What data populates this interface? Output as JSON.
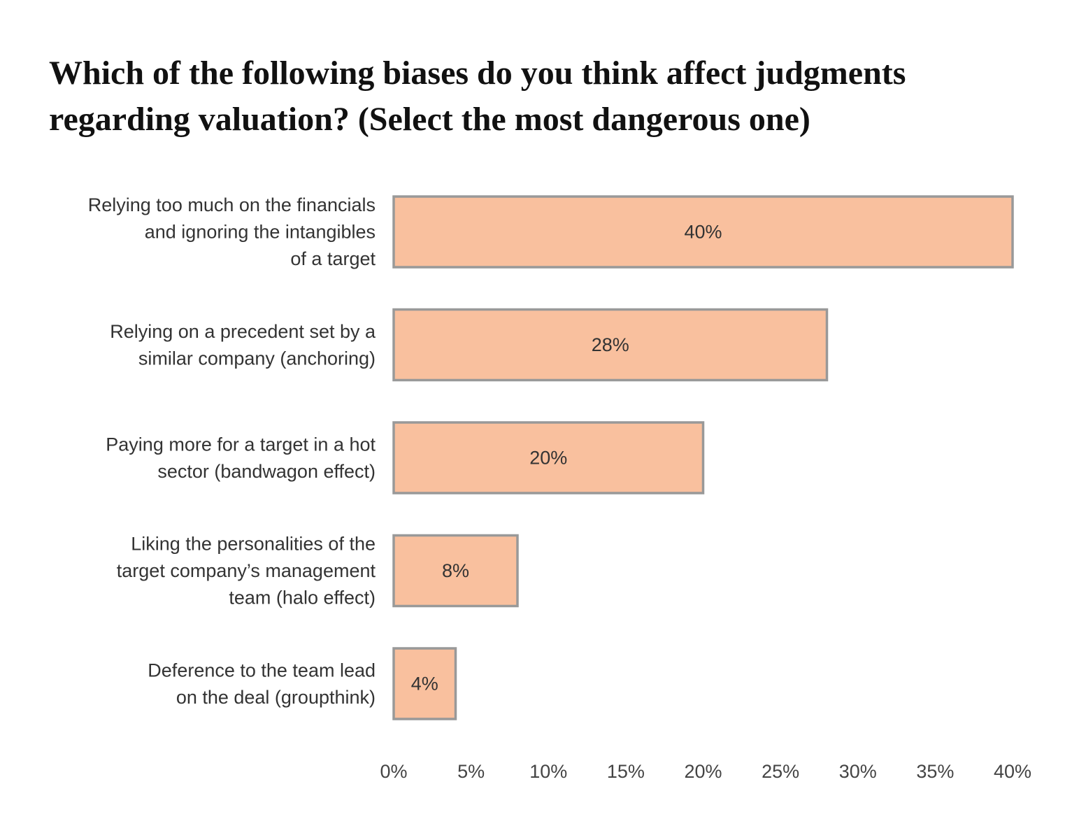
{
  "chart_data": {
    "type": "bar",
    "orientation": "horizontal",
    "title": [
      "Which of the following biases do you think affect judgments",
      "regarding valuation? (Select the most dangerous one)"
    ],
    "categories": [
      [
        "Relying too much on the financials",
        "and ignoring the intangibles",
        "of a target"
      ],
      [
        "Relying on a precedent set by a",
        "similar company (anchoring)"
      ],
      [
        "Paying more for a target in a hot",
        "sector (bandwagon effect)"
      ],
      [
        "Liking the personalities of the",
        "target company’s management",
        "team (halo effect)"
      ],
      [
        "Deference to the team lead",
        "on the deal (groupthink)"
      ]
    ],
    "values": [
      40,
      28,
      20,
      8,
      4
    ],
    "data_labels": [
      "40%",
      "28%",
      "20%",
      "8%",
      "4%"
    ],
    "xlim": [
      0,
      40
    ],
    "xticks": [
      0,
      5,
      10,
      15,
      20,
      25,
      30,
      35,
      40
    ],
    "xtick_labels": [
      "0%",
      "5%",
      "10%",
      "15%",
      "20%",
      "25%",
      "30%",
      "35%",
      "40%"
    ],
    "xlabel": "",
    "ylabel": "",
    "grid": false,
    "legend": "none",
    "colors": {
      "bar_fill": "#f9c09e",
      "bar_stroke": "#999999"
    }
  }
}
